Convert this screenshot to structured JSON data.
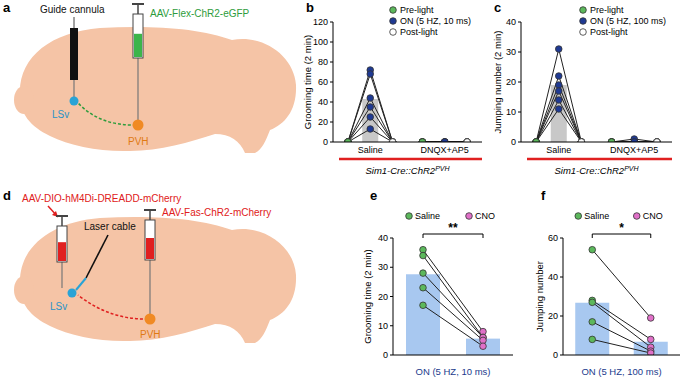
{
  "chart_data": [
    {
      "panel": "b",
      "type": "dot_plot",
      "y_label": "Grooming time (2 min)",
      "ylim": [
        0,
        120
      ],
      "yticks": [
        0,
        20,
        40,
        60,
        80,
        100,
        120
      ],
      "categories": [
        "Saline",
        "DNQX+AP5"
      ],
      "color": "#c8c8c8",
      "annotation": "Sim1-Cre::ChR2",
      "annotation_superscript": "PVH",
      "series": [
        {
          "name": "Pre-light",
          "color": "#5cb85c",
          "values": [
            [
              0,
              0,
              0,
              0,
              0,
              0
            ],
            [
              0,
              0,
              0,
              0,
              0,
              0
            ]
          ],
          "means": [
            0,
            0
          ]
        },
        {
          "name": "ON (5 HZ, 10 ms)",
          "color": "#1f3a93",
          "values": [
            [
              72,
              68,
              44,
              35,
              25,
              13
            ],
            [
              0,
              0,
              0,
              0,
              0,
              0
            ]
          ],
          "means": [
            43,
            0
          ]
        },
        {
          "name": "Post-light",
          "color": "#ffffff",
          "values": [
            [
              0,
              0,
              0,
              0,
              0,
              0
            ],
            [
              0,
              0,
              0,
              0,
              0,
              0
            ]
          ],
          "means": [
            0,
            0
          ]
        }
      ]
    },
    {
      "panel": "c",
      "type": "dot_plot",
      "y_label": "Jumping number (2 min)",
      "ylim": [
        0,
        40
      ],
      "yticks": [
        0,
        10,
        20,
        30,
        40
      ],
      "categories": [
        "Saline",
        "DNQX+AP5"
      ],
      "color": "#c8c8c8",
      "annotation": "Sim1-Cre::ChR2",
      "annotation_superscript": "PVH",
      "series": [
        {
          "name": "Pre-light",
          "color": "#5cb85c",
          "values": [
            [
              0,
              0,
              0,
              0,
              0,
              0
            ],
            [
              0,
              0,
              0,
              0,
              0,
              0
            ]
          ],
          "means": [
            0,
            0
          ]
        },
        {
          "name": "ON (5 HZ, 100 ms)",
          "color": "#1f3a93",
          "values": [
            [
              31,
              22,
              19,
              17,
              14,
              11
            ],
            [
              0,
              0,
              0,
              1,
              0,
              0
            ]
          ],
          "means": [
            19,
            0
          ]
        },
        {
          "name": "Post-light",
          "color": "#ffffff",
          "values": [
            [
              0,
              0,
              0,
              0,
              0,
              0
            ],
            [
              0,
              0,
              0,
              0,
              0,
              0
            ]
          ],
          "means": [
            0,
            0
          ]
        }
      ]
    },
    {
      "panel": "e",
      "type": "bar",
      "y_label": "Grooming time (2 min)",
      "x_label": "ON (5 HZ, 10 ms)",
      "ylim": [
        0,
        40
      ],
      "yticks": [
        0,
        10,
        20,
        30,
        40
      ],
      "color": "#a8c8f0",
      "significance": "**",
      "series": [
        {
          "name": "Saline",
          "color": "#5cb85c",
          "values": [
            36,
            34,
            28,
            23,
            17
          ],
          "mean": 27.6
        },
        {
          "name": "CNO",
          "color": "#e070c8",
          "values": [
            8,
            6,
            6,
            5,
            3
          ],
          "mean": 5.6
        }
      ]
    },
    {
      "panel": "f",
      "type": "bar",
      "y_label": "Jumping number",
      "x_label": "ON (5 HZ, 100 ms)",
      "ylim": [
        0,
        60
      ],
      "yticks": [
        0,
        20,
        40,
        60
      ],
      "color": "#a8c8f0",
      "significance": "*",
      "series": [
        {
          "name": "Saline",
          "color": "#5cb85c",
          "values": [
            54,
            28,
            27,
            17,
            8
          ],
          "mean": 26.8
        },
        {
          "name": "CNO",
          "color": "#e070c8",
          "values": [
            19,
            8,
            4,
            2,
            1
          ],
          "mean": 6.8
        }
      ]
    }
  ],
  "diagrams": [
    {
      "panel": "a",
      "device": "Guide cannula",
      "virus": "AAV-Flex-ChR2-eGFP",
      "target": "LSv",
      "origin": "PVH"
    },
    {
      "panel": "d",
      "target_virus": "AAV-DIO-hM4Di-DREADD-mCherry",
      "device": "Laser cable",
      "origin_virus": "AAV-Fas-ChR2-mCherry",
      "target": "LSv",
      "origin": "PVH"
    }
  ]
}
